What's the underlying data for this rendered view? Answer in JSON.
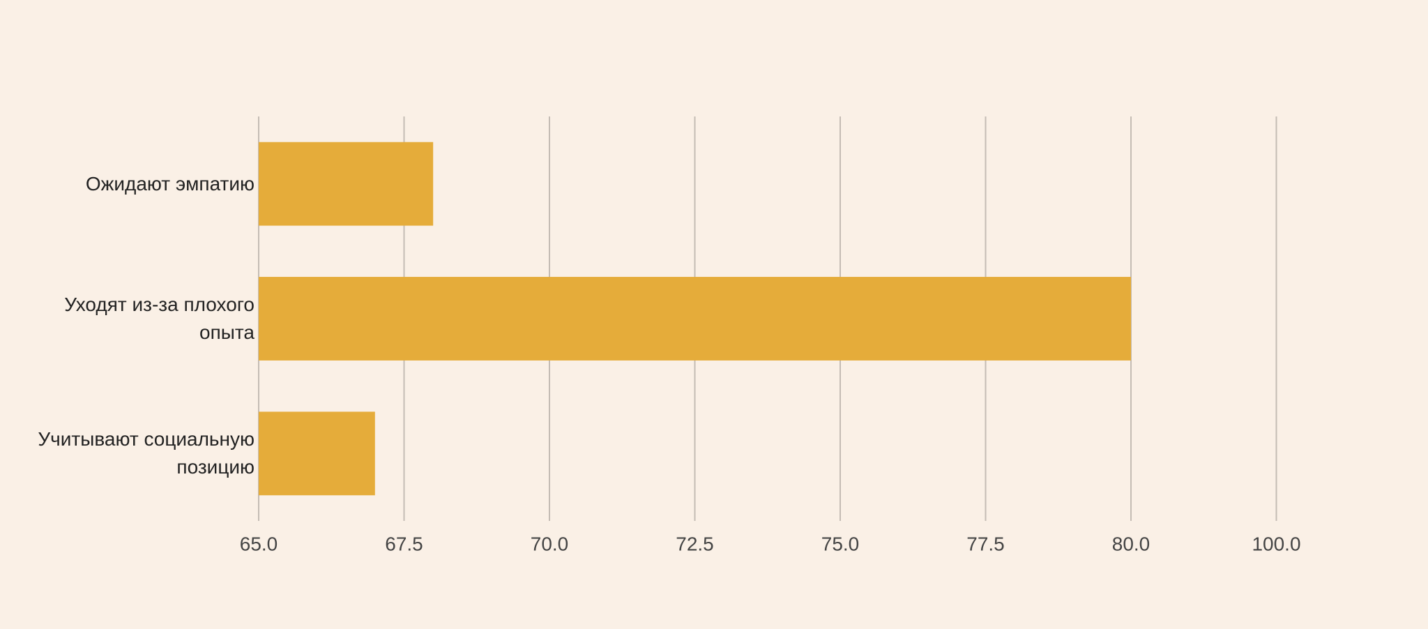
{
  "chart_data": {
    "type": "bar",
    "orientation": "horizontal",
    "categories": [
      "Ожидают эмпатию",
      "Уходят из-за плохого опыта",
      "Учитывают социальную позицию"
    ],
    "values": [
      68,
      80,
      67
    ],
    "color": "#e5ac3a",
    "xlim": [
      65,
      100
    ],
    "xticks": [
      {
        "value": 65,
        "label": "65.0"
      },
      {
        "value": 67.5,
        "label": "67.5"
      },
      {
        "value": 70,
        "label": "70.0"
      },
      {
        "value": 72.5,
        "label": "72.5"
      },
      {
        "value": 75,
        "label": "75.0"
      },
      {
        "value": 77.5,
        "label": "77.5"
      },
      {
        "value": 80,
        "label": "80.0"
      },
      {
        "value": 100,
        "label": "100.0"
      }
    ],
    "grid": true
  }
}
